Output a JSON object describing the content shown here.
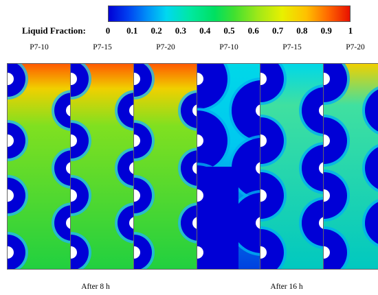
{
  "colorbar": {
    "title": "Liquid Fraction:",
    "ticks": [
      "0",
      "0.1",
      "0.2",
      "0.3",
      "0.4",
      "0.5",
      "0.6",
      "0.7",
      "0.8",
      "0.9",
      "1"
    ]
  },
  "panels": [
    {
      "label": "P7-10",
      "scheme": "hot"
    },
    {
      "label": "P7-15",
      "scheme": "hot"
    },
    {
      "label": "P7-20",
      "scheme": "hot"
    },
    {
      "label": "P7-10",
      "scheme": "cold"
    },
    {
      "label": "P7-15",
      "scheme": "cold"
    },
    {
      "label": "P7-20",
      "scheme": "cold"
    }
  ],
  "captions": [
    "After 8 h",
    "After 16 h"
  ],
  "colors": {
    "solid": "#0000d6",
    "liquid_top": "#ff5a00",
    "mid": "#80e020",
    "green": "#20d040",
    "cyan": "#00d8e8"
  }
}
